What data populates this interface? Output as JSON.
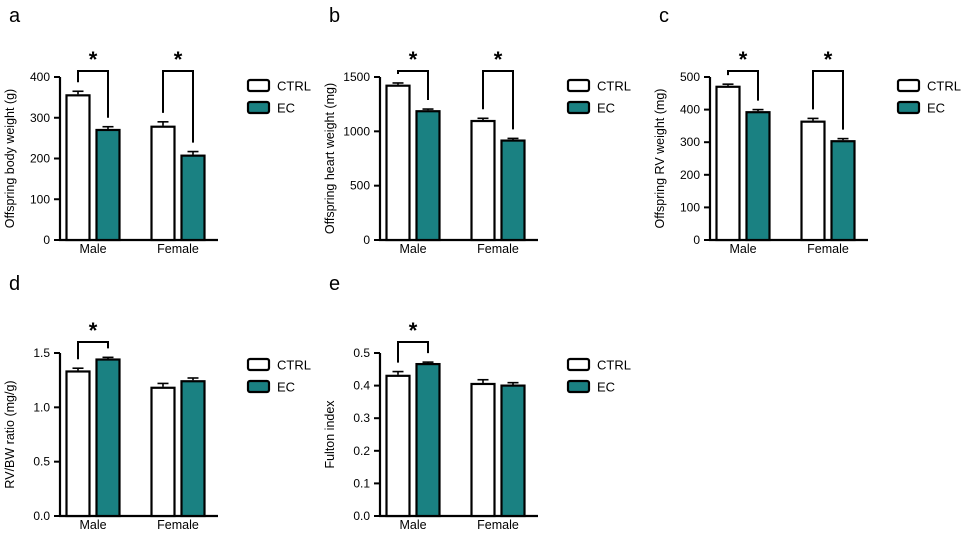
{
  "figure": {
    "background": "#ffffff",
    "colors": {
      "ctrl_fill": "#ffffff",
      "ec_fill": "#1a8182",
      "stroke": "#000000"
    },
    "significance_symbol": "*",
    "legend_labels": [
      "CTRL",
      "EC"
    ]
  },
  "chart_data": [
    {
      "type": "bar",
      "panel": "a",
      "title": "",
      "xlabel": "",
      "ylabel": "Offspring body weight (g)",
      "categories": [
        "Male",
        "Female"
      ],
      "series": [
        {
          "name": "CTRL",
          "values": [
            355,
            278
          ],
          "errors": [
            10,
            12
          ]
        },
        {
          "name": "EC",
          "values": [
            270,
            207
          ],
          "errors": [
            8,
            10
          ]
        }
      ],
      "ylim": [
        0,
        400
      ],
      "yticks": [
        0,
        100,
        200,
        300,
        400
      ],
      "ytick_labels": [
        "0",
        "100",
        "200",
        "300",
        "400"
      ],
      "significant": [
        true,
        true
      ],
      "legend": [
        "CTRL",
        "EC"
      ],
      "legend_position": "right",
      "grid": false
    },
    {
      "type": "bar",
      "panel": "b",
      "title": "",
      "xlabel": "",
      "ylabel": "Offspring heart weight (mg)",
      "categories": [
        "Male",
        "Female"
      ],
      "series": [
        {
          "name": "CTRL",
          "values": [
            1420,
            1095
          ],
          "errors": [
            25,
            25
          ]
        },
        {
          "name": "EC",
          "values": [
            1185,
            915
          ],
          "errors": [
            20,
            20
          ]
        }
      ],
      "ylim": [
        0,
        1500
      ],
      "yticks": [
        0,
        500,
        1000,
        1500
      ],
      "ytick_labels": [
        "0",
        "500",
        "1000",
        "1500"
      ],
      "significant": [
        true,
        true
      ],
      "legend": [
        "CTRL",
        "EC"
      ],
      "legend_position": "right",
      "grid": false
    },
    {
      "type": "bar",
      "panel": "c",
      "title": "",
      "xlabel": "",
      "ylabel": "Offspring RV weight (mg)",
      "categories": [
        "Male",
        "Female"
      ],
      "series": [
        {
          "name": "CTRL",
          "values": [
            470,
            363
          ],
          "errors": [
            8,
            10
          ]
        },
        {
          "name": "EC",
          "values": [
            392,
            303
          ],
          "errors": [
            8,
            8
          ]
        }
      ],
      "ylim": [
        0,
        500
      ],
      "yticks": [
        0,
        100,
        200,
        300,
        400,
        500
      ],
      "ytick_labels": [
        "0",
        "100",
        "200",
        "300",
        "400",
        "500"
      ],
      "significant": [
        true,
        true
      ],
      "legend": [
        "CTRL",
        "EC"
      ],
      "legend_position": "right",
      "grid": false
    },
    {
      "type": "bar",
      "panel": "d",
      "title": "",
      "xlabel": "",
      "ylabel": "RV/BW ratio (mg/g)",
      "categories": [
        "Male",
        "Female"
      ],
      "series": [
        {
          "name": "CTRL",
          "values": [
            1.33,
            1.18
          ],
          "errors": [
            0.03,
            0.04
          ]
        },
        {
          "name": "EC",
          "values": [
            1.44,
            1.24
          ],
          "errors": [
            0.02,
            0.03
          ]
        }
      ],
      "ylim": [
        0,
        1.5
      ],
      "yticks": [
        0,
        0.5,
        1.0,
        1.5
      ],
      "ytick_labels": [
        "0.0",
        "0.5",
        "1.0",
        "1.5"
      ],
      "significant": [
        true,
        false
      ],
      "legend": [
        "CTRL",
        "EC"
      ],
      "legend_position": "right",
      "grid": false
    },
    {
      "type": "bar",
      "panel": "e",
      "title": "",
      "xlabel": "",
      "ylabel": "Fulton index",
      "categories": [
        "Male",
        "Female"
      ],
      "series": [
        {
          "name": "CTRL",
          "values": [
            0.43,
            0.405
          ],
          "errors": [
            0.013,
            0.013
          ]
        },
        {
          "name": "EC",
          "values": [
            0.466,
            0.4
          ],
          "errors": [
            0.006,
            0.009
          ]
        }
      ],
      "ylim": [
        0,
        0.5
      ],
      "yticks": [
        0,
        0.1,
        0.2,
        0.3,
        0.4,
        0.5
      ],
      "ytick_labels": [
        "0.0",
        "0.1",
        "0.2",
        "0.3",
        "0.4",
        "0.5"
      ],
      "significant": [
        true,
        false
      ],
      "legend": [
        "CTRL",
        "EC"
      ],
      "legend_position": "right",
      "grid": false
    }
  ]
}
